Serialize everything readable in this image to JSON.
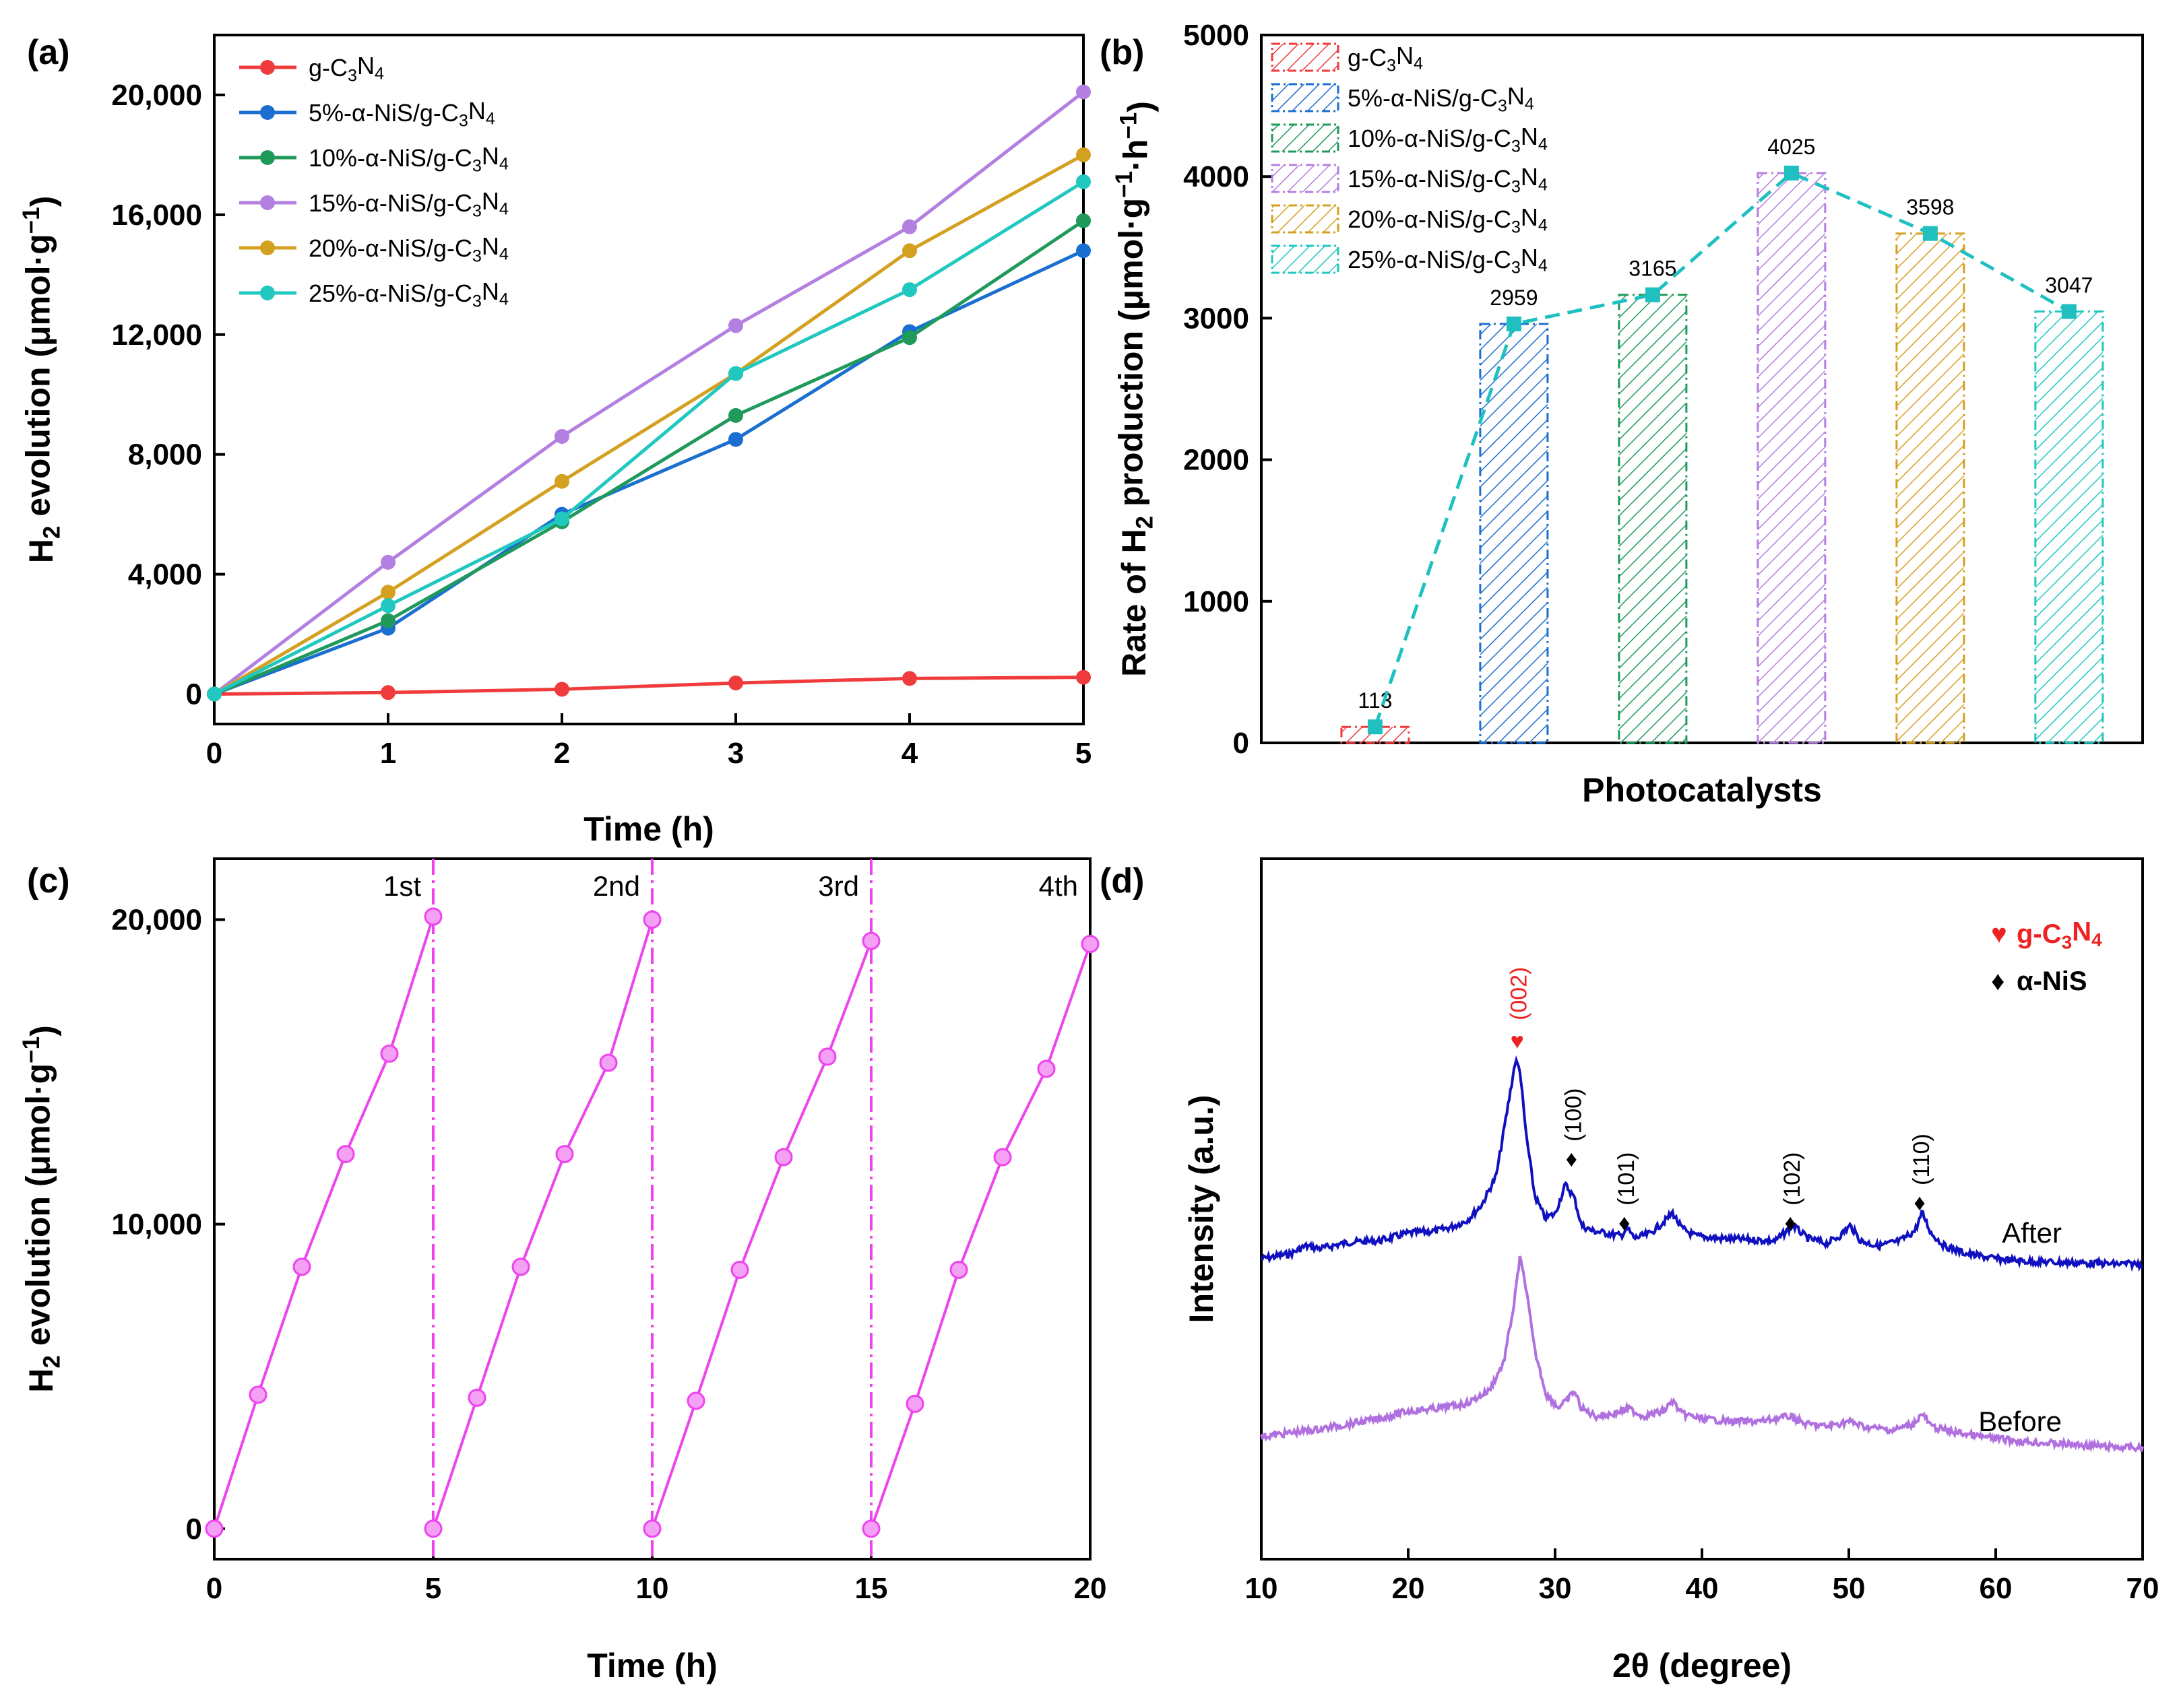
{
  "colors": {
    "gC3N4": "#ef3b3b",
    "NiS5": "#1a6fd1",
    "NiS10": "#1f9a5b",
    "NiS15": "#b37fe0",
    "NiS20": "#d4a020",
    "NiS25": "#20c8c0",
    "bar_line": "#20c0c0",
    "cycle": "#ee44ee",
    "after": "#1010c0",
    "before": "#b070e0",
    "peak_gcn": "#ee2222",
    "peak_nis": "#000000"
  },
  "chart_data": [
    {
      "id": "a",
      "panel_label": "(a)",
      "type": "line",
      "xlabel": "Time (h)",
      "ylabel": "H2 evolution (μmol·g−1)",
      "xlim": [
        0,
        5
      ],
      "ylim": [
        -1000,
        22000
      ],
      "xticks": [
        0,
        1,
        2,
        3,
        4,
        5
      ],
      "yticks": [
        0,
        4000,
        8000,
        12000,
        16000,
        20000
      ],
      "ytick_labels": [
        "0",
        "4,000",
        "8,000",
        "12,000",
        "16,000",
        "20,000"
      ],
      "x": [
        0,
        1,
        2,
        3,
        4,
        5
      ],
      "series": [
        {
          "name": "g-C3N4",
          "color_key": "gC3N4",
          "values": [
            0,
            50,
            160,
            370,
            520,
            560
          ]
        },
        {
          "name": "5%-α-NiS/g-C3N4",
          "color_key": "NiS5",
          "values": [
            0,
            2200,
            6000,
            8500,
            12100,
            14800
          ]
        },
        {
          "name": "10%-α-NiS/g-C3N4",
          "color_key": "NiS10",
          "values": [
            0,
            2450,
            5750,
            9300,
            11900,
            15800
          ]
        },
        {
          "name": "15%-α-NiS/g-C3N4",
          "color_key": "NiS15",
          "values": [
            0,
            4400,
            8600,
            12300,
            15600,
            20100
          ]
        },
        {
          "name": "20%-α-NiS/g-C3N4",
          "color_key": "NiS20",
          "values": [
            0,
            3400,
            7100,
            10700,
            14800,
            18000
          ]
        },
        {
          "name": "25%-α-NiS/g-C3N4",
          "color_key": "NiS25",
          "values": [
            0,
            2950,
            5850,
            10700,
            13500,
            17100
          ]
        }
      ]
    },
    {
      "id": "b",
      "panel_label": "(b)",
      "type": "bar",
      "xlabel": "Photocatalysts",
      "ylabel": "Rate of H2 production (μmol·g−1·h−1)",
      "ylim": [
        0,
        5000
      ],
      "yticks": [
        0,
        1000,
        2000,
        3000,
        4000,
        5000
      ],
      "categories": [
        "g-C3N4",
        "5%-α-NiS/g-C3N4",
        "10%-α-NiS/g-C3N4",
        "15%-α-NiS/g-C3N4",
        "20%-α-NiS/g-C3N4",
        "25%-α-NiS/g-C3N4"
      ],
      "values": [
        113,
        2959,
        3165,
        4025,
        3598,
        3047
      ],
      "data_labels": [
        "113",
        "2959",
        "3165",
        "4025",
        "3598",
        "3047"
      ],
      "color_keys": [
        "gC3N4",
        "NiS5",
        "NiS10",
        "NiS15",
        "NiS20",
        "NiS25"
      ]
    },
    {
      "id": "c",
      "panel_label": "(c)",
      "type": "line",
      "xlabel": "Time (h)",
      "ylabel": "H2 evolution (μmol·g−1)",
      "xlim": [
        0,
        20
      ],
      "ylim": [
        -1000,
        22000
      ],
      "xticks": [
        0,
        5,
        10,
        15,
        20
      ],
      "yticks": [
        0,
        10000,
        20000
      ],
      "ytick_labels": [
        "0",
        "10,000",
        "20,000"
      ],
      "cycle_labels": [
        "1st",
        "2nd",
        "3rd",
        "4th"
      ],
      "cycle_boundaries": [
        5,
        10,
        15
      ],
      "cycles": [
        {
          "x": [
            0,
            1,
            2,
            3,
            4,
            5
          ],
          "values": [
            0,
            4400,
            8600,
            12300,
            15600,
            20100
          ]
        },
        {
          "x": [
            5,
            6,
            7,
            8,
            9,
            10
          ],
          "values": [
            0,
            4300,
            8600,
            12300,
            15300,
            20000
          ]
        },
        {
          "x": [
            10,
            11,
            12,
            13,
            14,
            15
          ],
          "values": [
            0,
            4200,
            8500,
            12200,
            15500,
            19300
          ]
        },
        {
          "x": [
            15,
            16,
            17,
            18,
            19,
            20
          ],
          "values": [
            0,
            4100,
            8500,
            12200,
            15100,
            19200
          ]
        }
      ]
    },
    {
      "id": "d",
      "panel_label": "(d)",
      "type": "line",
      "xlabel": "2θ (degree)",
      "ylabel": "Intensity (a.u.)",
      "xlim": [
        10,
        70
      ],
      "xticks": [
        10,
        20,
        30,
        40,
        50,
        60,
        70
      ],
      "legend": [
        {
          "symbol": "♥",
          "label": "g-C3N4",
          "color_key": "peak_gcn"
        },
        {
          "symbol": "♦",
          "label": "α-NiS",
          "color_key": "peak_nis"
        }
      ],
      "traces": [
        {
          "name": "After",
          "color_key": "after",
          "offset": 1.0,
          "x": [
            10,
            12,
            13,
            14,
            16,
            18,
            20,
            22,
            23,
            24,
            25,
            26,
            26.8,
            27.3,
            27.6,
            28.0,
            28.6,
            29.3,
            30.0,
            30.7,
            31.3,
            31.8,
            32.5,
            33.5,
            34.5,
            34.9,
            35.4,
            36.5,
            37.5,
            38.0,
            38.6,
            39.5,
            41,
            43,
            45,
            46.2,
            47.2,
            48.5,
            49.4,
            50.1,
            50.8,
            52,
            53.5,
            54.5,
            55.0,
            55.6,
            56.5,
            58,
            60,
            62,
            65,
            68,
            70
          ],
          "values": [
            0.2,
            0.24,
            0.3,
            0.28,
            0.33,
            0.34,
            0.4,
            0.42,
            0.45,
            0.5,
            0.62,
            0.85,
            1.4,
            1.75,
            1.68,
            1.2,
            0.7,
            0.52,
            0.55,
            0.78,
            0.68,
            0.46,
            0.42,
            0.4,
            0.38,
            0.44,
            0.36,
            0.4,
            0.5,
            0.56,
            0.44,
            0.38,
            0.36,
            0.35,
            0.34,
            0.46,
            0.36,
            0.32,
            0.38,
            0.46,
            0.34,
            0.3,
            0.34,
            0.42,
            0.56,
            0.4,
            0.3,
            0.24,
            0.2,
            0.18,
            0.17,
            0.16,
            0.16
          ],
          "label": "After"
        },
        {
          "name": "Before",
          "color_key": "before",
          "offset": 0.0,
          "x": [
            10,
            12,
            14,
            16,
            18,
            20,
            22,
            24,
            25.5,
            26.5,
            27.2,
            27.6,
            28.0,
            28.6,
            29.4,
            30.2,
            30.8,
            31.3,
            31.8,
            32.8,
            34,
            35,
            36,
            37.4,
            38.0,
            38.6,
            40,
            42,
            44,
            46,
            47,
            48.5,
            50,
            51,
            53,
            54.4,
            55.0,
            55.6,
            57,
            59,
            62,
            65,
            68,
            70
          ],
          "values": [
            0.22,
            0.25,
            0.28,
            0.32,
            0.36,
            0.42,
            0.44,
            0.48,
            0.58,
            0.8,
            1.25,
            1.62,
            1.4,
            0.9,
            0.55,
            0.45,
            0.5,
            0.58,
            0.44,
            0.38,
            0.4,
            0.44,
            0.38,
            0.42,
            0.5,
            0.4,
            0.36,
            0.34,
            0.34,
            0.38,
            0.32,
            0.3,
            0.34,
            0.3,
            0.27,
            0.32,
            0.4,
            0.3,
            0.26,
            0.22,
            0.18,
            0.16,
            0.14,
            0.13
          ],
          "label": "Before"
        }
      ],
      "peak_labels": [
        {
          "text": "(002)",
          "two_theta": 27.6,
          "symbol": "♥",
          "color_key": "peak_gcn"
        },
        {
          "text": "(100)",
          "two_theta": 31.3,
          "symbol": "♦",
          "color_key": "peak_nis"
        },
        {
          "text": "(101)",
          "two_theta": 34.9,
          "symbol": "♦",
          "color_key": "peak_nis"
        },
        {
          "text": "(102)",
          "two_theta": 46.2,
          "symbol": "♦",
          "color_key": "peak_nis"
        },
        {
          "text": "(110)",
          "two_theta": 55.0,
          "symbol": "♦",
          "color_key": "peak_nis"
        }
      ]
    }
  ]
}
